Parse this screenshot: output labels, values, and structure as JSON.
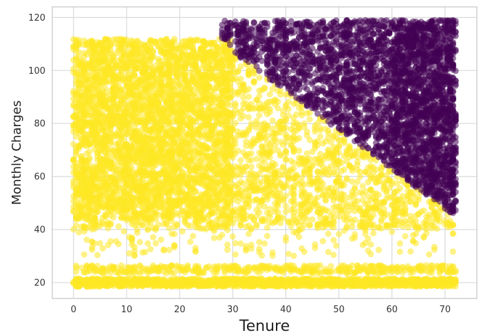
{
  "chart_data": {
    "type": "scatter",
    "title": "",
    "xlabel": "Tenure",
    "ylabel": "Monthly Charges",
    "xlim": [
      -4,
      76
    ],
    "ylim": [
      14,
      124
    ],
    "xticks": [
      "0",
      "10",
      "20",
      "30",
      "40",
      "50",
      "60",
      "70"
    ],
    "yticks": [
      "20",
      "40",
      "60",
      "80",
      "100",
      "120"
    ],
    "grid": true,
    "legend": "none",
    "point_alpha": 0.55,
    "cluster_boundary": {
      "description": "diagonal split",
      "from": {
        "x": 28,
        "y": 110
      },
      "to": {
        "x": 72,
        "y": 45
      }
    },
    "series": [
      {
        "color": "#fde725",
        "regions": [
          {
            "x": [
              0,
              72
            ],
            "y": [
              18.5,
              21.5
            ],
            "weight": 1500
          },
          {
            "x": [
              0,
              72
            ],
            "y": [
              23.5,
              26.5
            ],
            "weight": 420
          },
          {
            "x": [
              0,
              30
            ],
            "y": [
              44,
              112
            ],
            "weight": 2200
          },
          {
            "x": [
              0,
              72
            ],
            "y": [
              40,
              112
            ],
            "weight": 2400,
            "below_boundary": true
          },
          {
            "x": [
              0,
              72
            ],
            "y": [
              30,
              70
            ],
            "weight": 500
          }
        ]
      },
      {
        "color": "#440154",
        "regions": [
          {
            "x": [
              28,
              72
            ],
            "y": [
              45,
              119
            ],
            "weight": 2600,
            "above_boundary": true
          },
          {
            "x": [
              60,
              72
            ],
            "y": [
              45,
              119
            ],
            "weight": 700,
            "above_boundary": true
          }
        ]
      }
    ]
  }
}
